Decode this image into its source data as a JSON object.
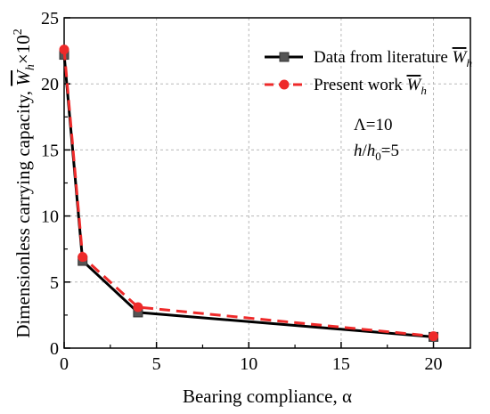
{
  "chart_data": {
    "type": "line",
    "title": "",
    "xlabel": "Bearing compliance, α",
    "ylabel_prefix": "Dimensionless carrying capacity, ",
    "ylabel_symbol": "W",
    "ylabel_sub": "h",
    "ylabel_times": "×10",
    "ylabel_exp": "2",
    "xlim": [
      0,
      22
    ],
    "ylim": [
      0,
      25
    ],
    "xticks": [
      0,
      5,
      10,
      15,
      20
    ],
    "xtick_labels": [
      "0",
      "5",
      "10",
      "15",
      "20"
    ],
    "yticks": [
      0,
      5,
      10,
      15,
      20,
      25
    ],
    "ytick_labels": [
      "0",
      "5",
      "10",
      "15",
      "20",
      "25"
    ],
    "grid": true,
    "legend_position": "top-right",
    "series": [
      {
        "name": "Data from literature ",
        "name_symbol": "W",
        "name_sub": "h",
        "color": "#000000",
        "marker": "square",
        "dash": "solid",
        "x": [
          0,
          1,
          4,
          20
        ],
        "y": [
          22.2,
          6.6,
          2.7,
          0.85
        ]
      },
      {
        "name": "Present work ",
        "name_symbol": "W",
        "name_sub": "h",
        "color": "#ee2a2a",
        "marker": "circle",
        "dash": "dashed",
        "x": [
          0,
          1,
          4,
          20
        ],
        "y": [
          22.6,
          6.9,
          3.1,
          0.9
        ]
      }
    ],
    "annotations": [
      {
        "id": "lambda",
        "text": "Λ=10"
      },
      {
        "id": "ratio",
        "italic1": "h",
        "plain1": "/",
        "italic2": "h",
        "sub": "0",
        "plain2": "=5"
      }
    ]
  }
}
